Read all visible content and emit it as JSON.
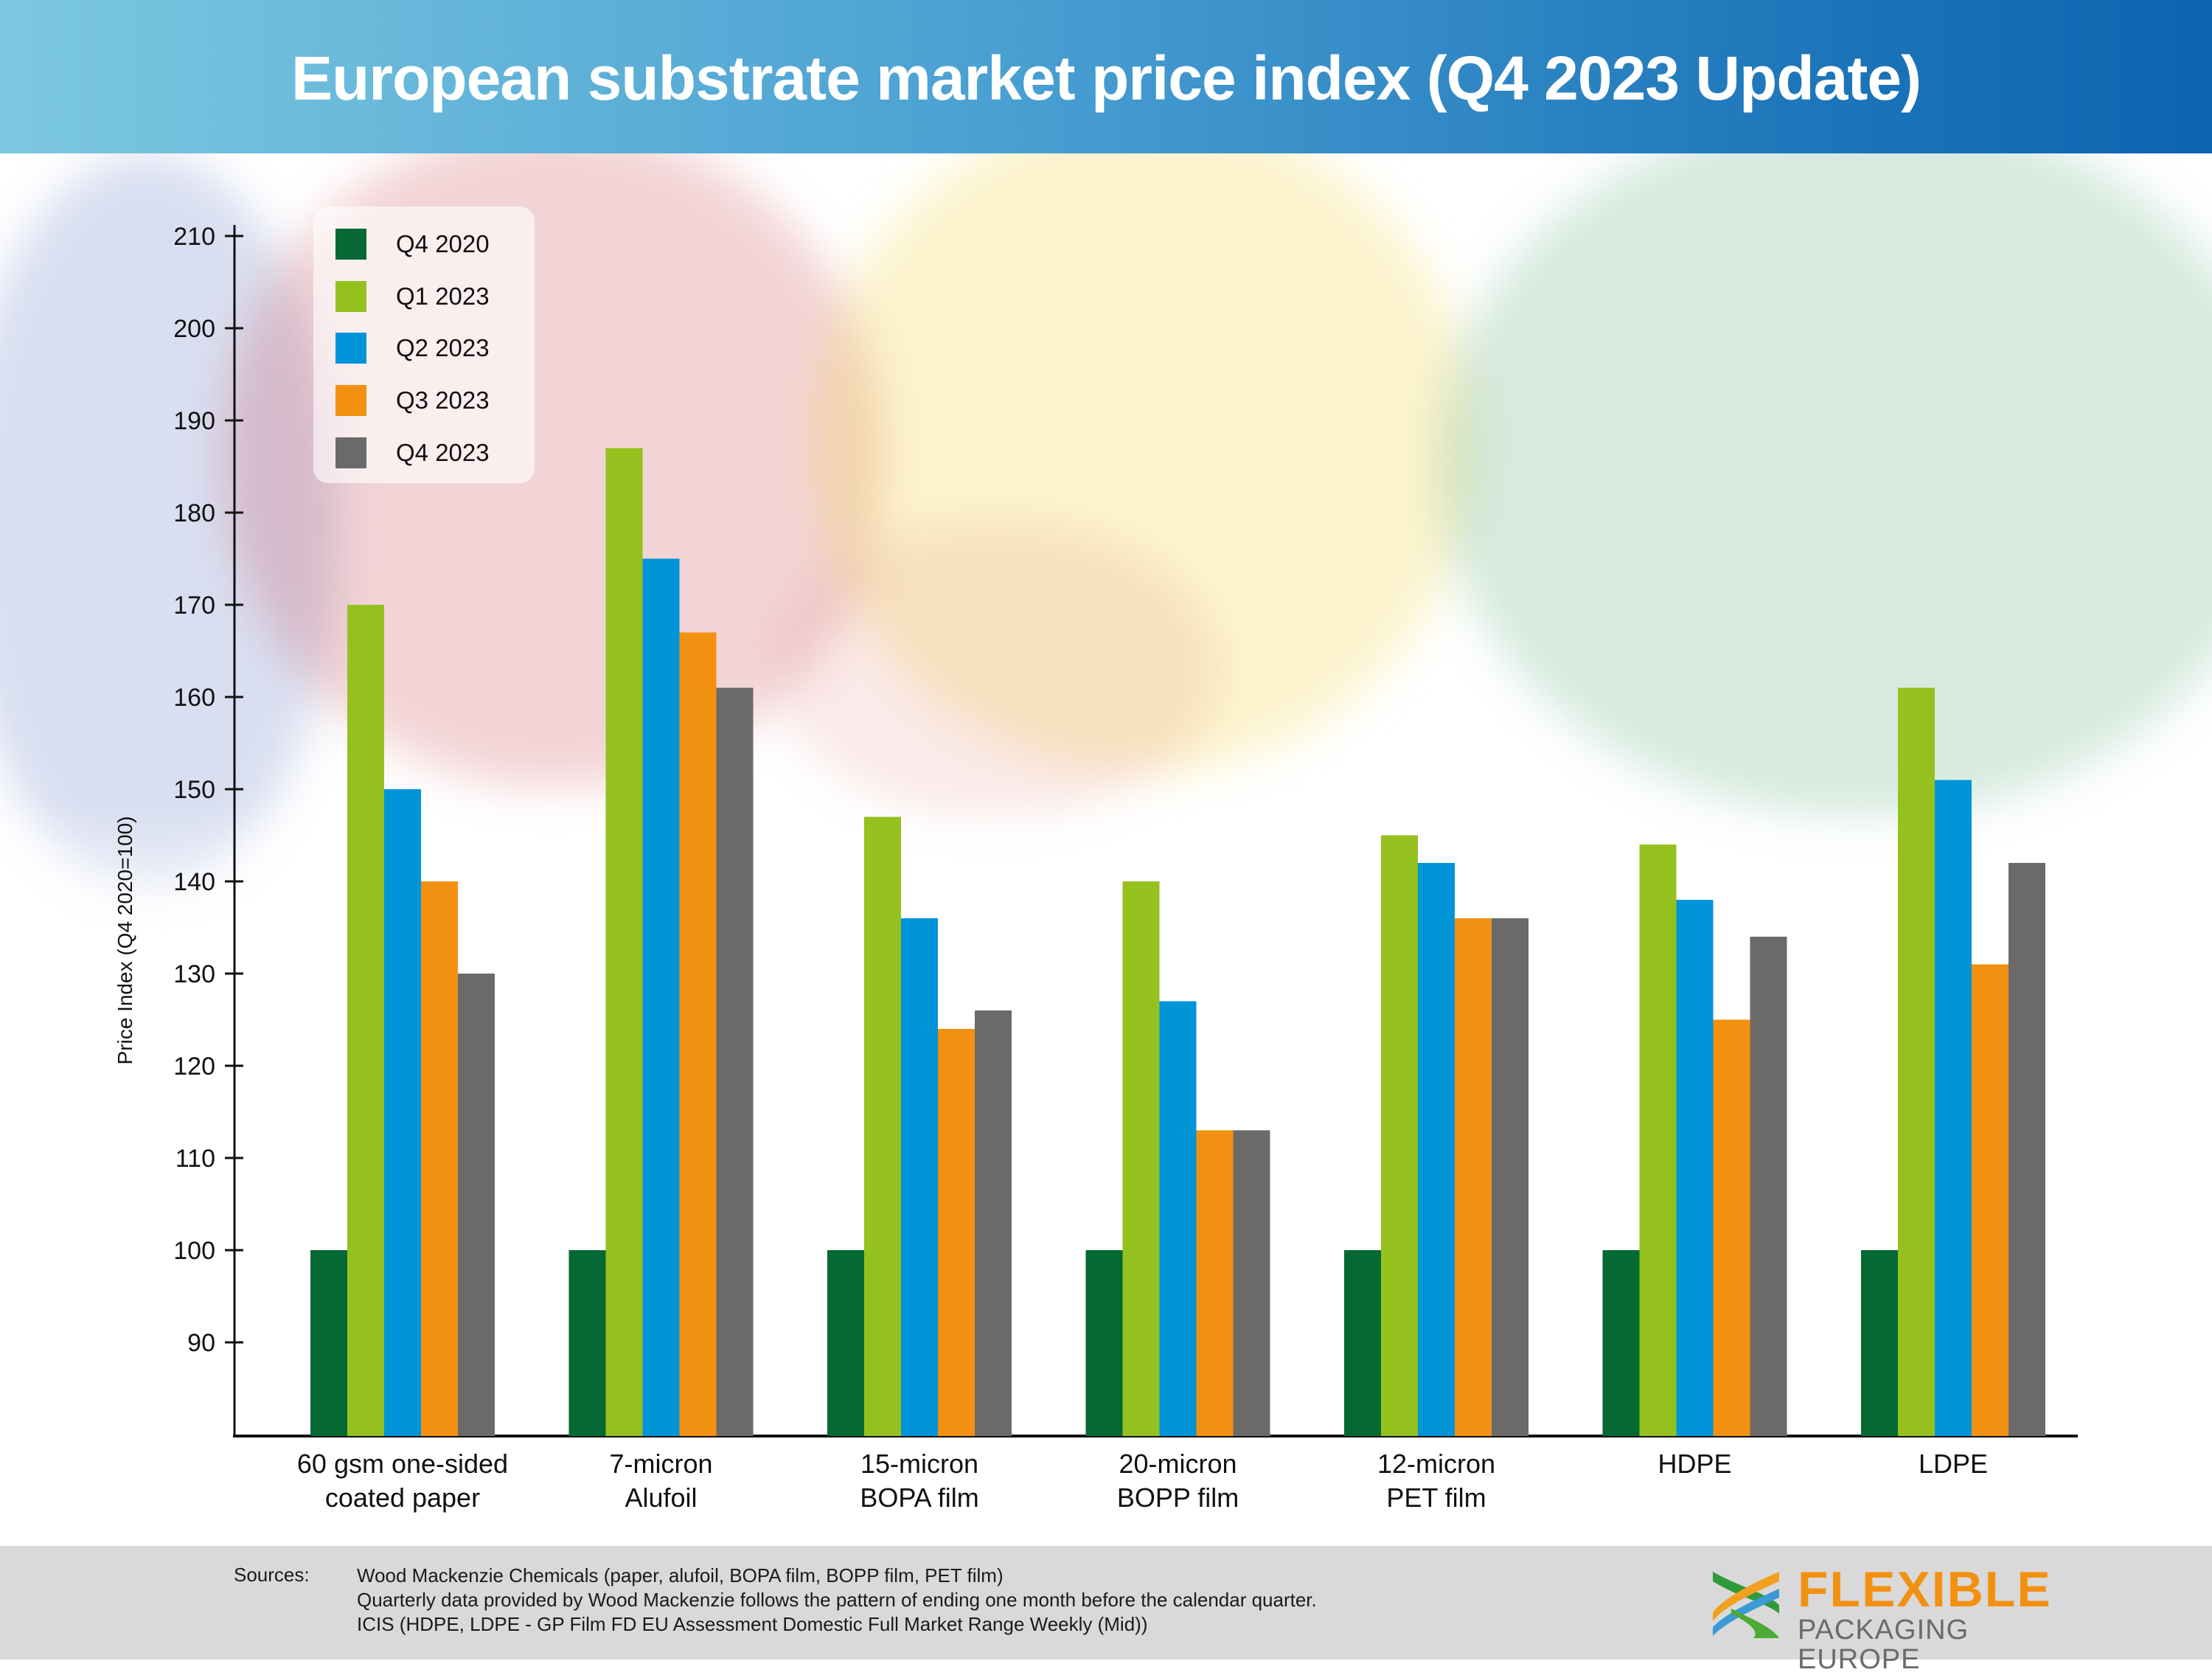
{
  "header": {
    "title": "European substrate market price index (Q4 2023 Update)"
  },
  "colors": {
    "header_start": "#7cc8e0",
    "header_end": "#0d65b0",
    "series": [
      "#066833",
      "#95c11f",
      "#0094d9",
      "#f29111",
      "#6b6a69"
    ],
    "logo_orange": "#f29111",
    "logo_gray": "#6b6a69",
    "footer_bg": "#d9d9d9"
  },
  "chart_data": {
    "type": "bar",
    "title": "European substrate market price index (Q4 2023 Update)",
    "xlabel": "",
    "ylabel": "Price Index (Q4 2020=100)",
    "ylim": [
      80,
      212
    ],
    "yticks": [
      90,
      100,
      110,
      120,
      130,
      140,
      150,
      160,
      170,
      180,
      190,
      200,
      210
    ],
    "grid": false,
    "legend_position": "top-left",
    "categories": [
      [
        "60 gsm one-sided",
        "coated paper"
      ],
      [
        "7-micron",
        "Alufoil"
      ],
      [
        "15-micron",
        "BOPA film"
      ],
      [
        "20-micron",
        "BOPP film"
      ],
      [
        "12-micron",
        "PET film"
      ],
      [
        "HDPE"
      ],
      [
        "LDPE"
      ]
    ],
    "series": [
      {
        "name": "Q4 2020",
        "values": [
          100,
          100,
          100,
          100,
          100,
          100,
          100
        ]
      },
      {
        "name": "Q1 2023",
        "values": [
          170,
          187,
          147,
          140,
          145,
          144,
          161
        ]
      },
      {
        "name": "Q2 2023",
        "values": [
          150,
          175,
          136,
          127,
          142,
          138,
          151
        ]
      },
      {
        "name": "Q3 2023",
        "values": [
          140,
          167,
          124,
          113,
          136,
          125,
          131
        ]
      },
      {
        "name": "Q4 2023",
        "values": [
          130,
          161,
          126,
          113,
          136,
          134,
          142
        ]
      }
    ]
  },
  "footer": {
    "sources_label": "Sources:",
    "source_lines": [
      "Wood Mackenzie Chemicals (paper, alufoil, BOPA film, BOPP film, PET film)",
      "Quarterly data provided by Wood Mackenzie follows the pattern of ending one month before the calendar quarter.",
      "ICIS (HDPE, LDPE - GP Film FD EU Assessment Domestic Full Market Range Weekly (Mid))"
    ],
    "logo": {
      "top": "FLEXIBLE",
      "bottom": "PACKAGING EUROPE"
    }
  }
}
